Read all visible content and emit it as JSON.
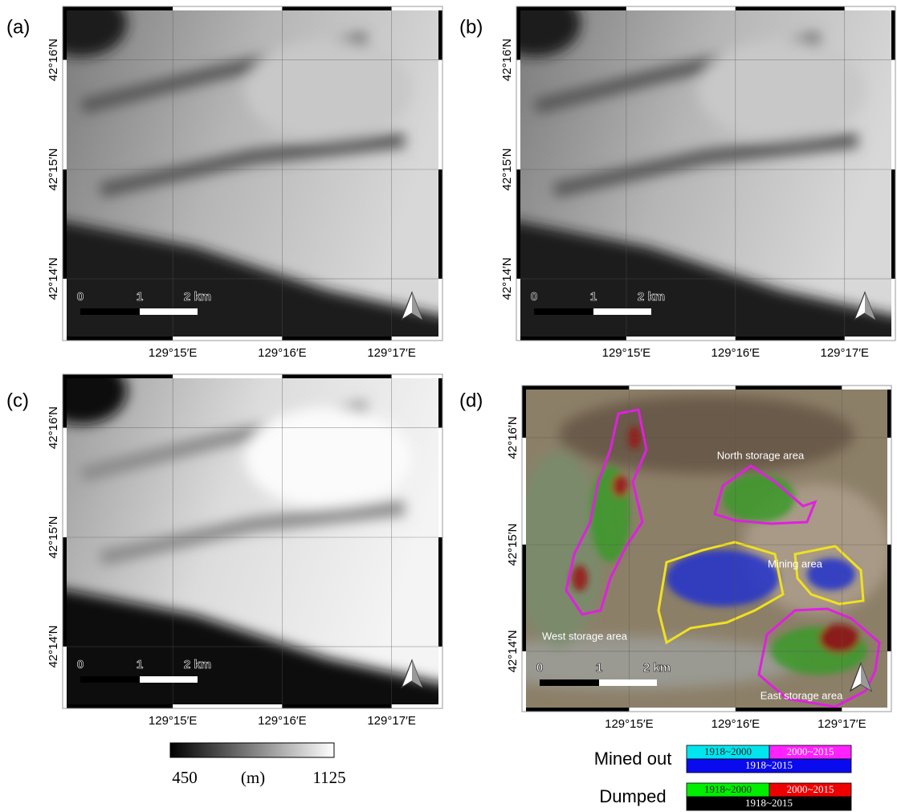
{
  "panels": [
    {
      "label": "(a)"
    },
    {
      "label": "(b)"
    },
    {
      "label": "(c)"
    },
    {
      "label": "(d)"
    }
  ],
  "latitude_labels": [
    "42°16′N",
    "42°15′N",
    "42°14′N"
  ],
  "longitude_labels": [
    "129°15′E",
    "129°16′E",
    "129°17′E"
  ],
  "scale_bar": [
    "0",
    "1",
    "2 km"
  ],
  "annotations": [
    "North storage area",
    "Mining area",
    "West storage area",
    "East storage area"
  ],
  "colorbar": {
    "min": "450",
    "unit": "(m)",
    "max": "1125"
  },
  "legend": [
    {
      "label": "Mined out",
      "periods": [
        "1918~2000",
        "2000~2015",
        "1918~2015"
      ]
    },
    {
      "label": "Dumped",
      "periods": [
        "1918~2000",
        "2000~2015",
        "1918~2015"
      ]
    }
  ]
}
